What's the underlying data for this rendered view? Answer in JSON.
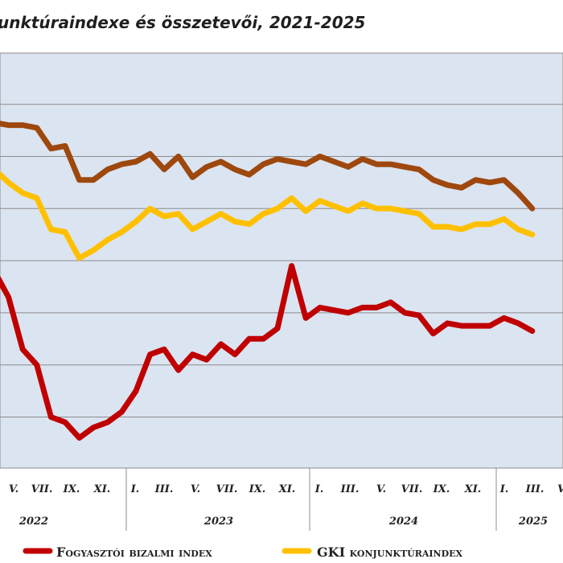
{
  "chart_data": {
    "type": "line",
    "title": "unktúraindexe és összetevői, 2021-2025",
    "x_tick_labels": [
      "V.",
      "VII.",
      "IX.",
      "XI.",
      "I.",
      "III.",
      "V.",
      "VII.",
      "IX.",
      "XI.",
      "I.",
      "III.",
      "V.",
      "VII.",
      "IX.",
      "XI.",
      "I.",
      "III.",
      "V"
    ],
    "year_labels": [
      "2022",
      "2023",
      "2024",
      "2025"
    ],
    "grid": true,
    "legend": "bottom",
    "series": [
      {
        "name": "Fogyasztói bizalmi index",
        "color": "#c00000",
        "values": [
          -22,
          -27,
          -37,
          -40,
          -50,
          -51,
          -54,
          -52,
          -51,
          -49,
          -45,
          -38,
          -37,
          -41,
          -38,
          -39,
          -36,
          -38,
          -35,
          -35,
          -33,
          -21,
          -31,
          -29,
          -29.5,
          -30,
          -29,
          -29,
          -28,
          -30,
          -30.5,
          -34,
          -32,
          -32.5,
          -32.5,
          -32.5,
          -31,
          -32,
          -33.5
        ]
      },
      {
        "name": "GKI konjunktúraindex",
        "color": "#ffc000",
        "values": [
          -2.5,
          -5,
          -7,
          -8,
          -14,
          -14.5,
          -19.5,
          -18,
          -16,
          -14.5,
          -12.5,
          -10,
          -11.5,
          -11,
          -14,
          -12.5,
          -11,
          -12.5,
          -13,
          -11,
          -10,
          -8,
          -10.5,
          -8.5,
          -9.5,
          -10.5,
          -9,
          -10,
          -10,
          -10.5,
          -11,
          -13.5,
          -13.5,
          -14,
          -13,
          -13,
          -12,
          -14,
          -15
        ]
      },
      {
        "name": "",
        "color": "#9e480e",
        "values": [
          6.5,
          6,
          6,
          5.5,
          1.5,
          2,
          -4.5,
          -4.5,
          -2.5,
          -1.5,
          -1,
          0.5,
          -2.5,
          0,
          -4,
          -2,
          -1,
          -2.5,
          -3.5,
          -1.5,
          -0.5,
          -1,
          -1.5,
          0,
          -1,
          -2,
          -0.5,
          -1.5,
          -1.5,
          -2,
          -2.5,
          -4.5,
          -5.5,
          -6,
          -4.5,
          -5,
          -4.5,
          -7,
          -10
        ]
      }
    ]
  },
  "legend": {
    "items": [
      {
        "label": "Fogyasztói bizalmi index",
        "color": "#c00000"
      },
      {
        "label": "GKI konjunktúraindex",
        "color": "#ffc000"
      }
    ]
  }
}
